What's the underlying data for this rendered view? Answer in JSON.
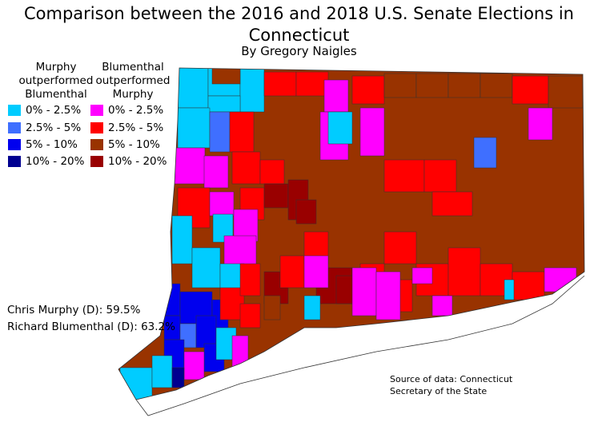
{
  "title_line1": "Comparison between the 2016 and 2018 U.S. Senate Elections in",
  "title_line2": "Connecticut",
  "subtitle": "By Gregory Naigles",
  "legend": {
    "murphy_header": [
      "Murphy",
      "outperformed",
      "Blumenthal"
    ],
    "blumenthal_header": [
      "Blumenthal",
      "outperformed",
      "Murphy"
    ],
    "murphy": [
      {
        "label": "0% - 2.5%",
        "color": "#00ccff"
      },
      {
        "label": "2.5% - 5%",
        "color": "#3f6fff"
      },
      {
        "label": "5% - 10%",
        "color": "#0000ee"
      },
      {
        "label": "10% - 20%",
        "color": "#000090"
      }
    ],
    "blumenthal": [
      {
        "label": "0% - 2.5%",
        "color": "#ff00ff"
      },
      {
        "label": "2.5% - 5%",
        "color": "#ff0000"
      },
      {
        "label": "5% - 10%",
        "color": "#993300"
      },
      {
        "label": "10% - 20%",
        "color": "#990000"
      }
    ]
  },
  "results": {
    "murphy": "Chris Murphy (D): 59.5%",
    "blumenthal": "Richard Blumenthal (D): 63.2%"
  },
  "source": [
    "Source of data: Connecticut",
    "Secretary of the State"
  ]
}
